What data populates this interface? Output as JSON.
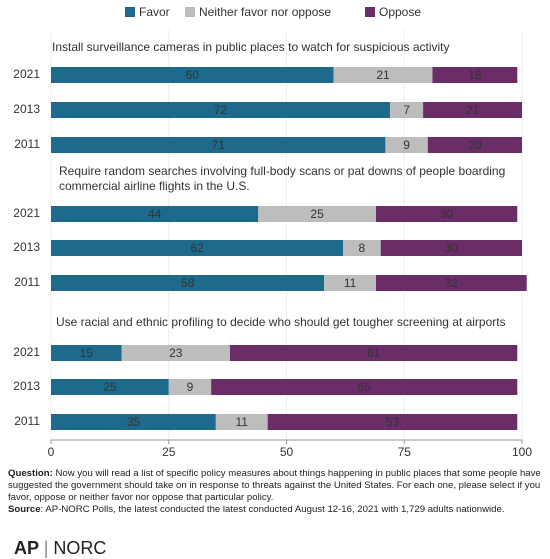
{
  "chart_data": {
    "type": "bar",
    "orientation": "horizontal",
    "stacked": true,
    "series": [
      {
        "name": "Favor",
        "color": "#1d6a8c"
      },
      {
        "name": "Neither favor nor oppose",
        "color": "#bdbdbd"
      },
      {
        "name": "Oppose",
        "color": "#6a2d67"
      }
    ],
    "panels": [
      {
        "title": [
          "Install surveillance cameras in public places to watch for suspicious activity"
        ],
        "categories": [
          "2021",
          "2013",
          "2011"
        ],
        "values": [
          [
            60,
            21,
            18
          ],
          [
            72,
            7,
            21
          ],
          [
            71,
            9,
            20
          ]
        ]
      },
      {
        "title": [
          "Require random searches involving full-body scans or pat downs of people boarding",
          "commercial airline flights in the U.S."
        ],
        "categories": [
          "2021",
          "2013",
          "2011"
        ],
        "values": [
          [
            44,
            25,
            30
          ],
          [
            62,
            8,
            30
          ],
          [
            58,
            11,
            32
          ]
        ]
      },
      {
        "title": [
          "Use racial and ethnic profiling to decide who should get tougher screening at airports"
        ],
        "categories": [
          "2021",
          "2013",
          "2011"
        ],
        "values": [
          [
            15,
            23,
            61
          ],
          [
            25,
            9,
            65
          ],
          [
            35,
            11,
            53
          ]
        ]
      }
    ],
    "xlim": [
      0,
      100
    ],
    "xticks": [
      0,
      25,
      50,
      75,
      100
    ],
    "grid": true,
    "note_label": "Question:",
    "note": "Now you will read a list of specific policy measures about things happening in public places that some people have suggested the government should take on in response to threats against the United States. For each one, please select if you favor, oppose or neither favor nor oppose that particular policy.",
    "source_label": "Source",
    "source": ": AP-NORC Polls, the latest conducted the latest conducted August 12-16, 2021 with 1,729 adults nationwide.",
    "logo": [
      "AP",
      "NORC"
    ]
  }
}
